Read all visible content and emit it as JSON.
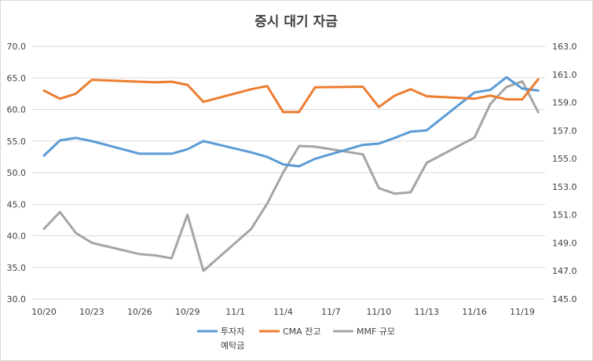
{
  "chart_data": {
    "type": "line",
    "title": "증시 대기 자금",
    "x_tick_labels": [
      "10/20",
      "10/23",
      "10/26",
      "10/29",
      "11/1",
      "11/4",
      "11/7",
      "11/10",
      "11/13",
      "11/16",
      "11/19"
    ],
    "x": [
      "10/20",
      "10/21",
      "10/22",
      "10/23",
      "10/26",
      "10/27",
      "10/28",
      "10/29",
      "10/30",
      "11/2",
      "11/3",
      "11/4",
      "11/5",
      "11/6",
      "11/9",
      "11/10",
      "11/11",
      "11/12",
      "11/13",
      "11/16",
      "11/17",
      "11/18",
      "11/19",
      "11/20"
    ],
    "left_axis": {
      "ylim": [
        30,
        70
      ],
      "ticks": [
        "30.0",
        "35.0",
        "40.0",
        "45.0",
        "50.0",
        "55.0",
        "60.0",
        "65.0",
        "70.0"
      ]
    },
    "right_axis": {
      "ylim": [
        145,
        163
      ],
      "ticks": [
        "145.0",
        "147.0",
        "149.0",
        "151.0",
        "153.0",
        "155.0",
        "157.0",
        "159.0",
        "161.0",
        "163.0"
      ]
    },
    "series": [
      {
        "name": "투자자 예탁금",
        "axis": "left",
        "color": "#5b9bd5",
        "values": [
          52.7,
          55.1,
          55.5,
          55.0,
          53.0,
          53.0,
          53.0,
          53.7,
          55.0,
          53.2,
          52.5,
          51.3,
          51.0,
          52.2,
          54.4,
          54.6,
          55.5,
          56.5,
          56.7,
          62.7,
          63.1,
          65.1,
          63.3,
          63.0
        ]
      },
      {
        "name": "CMA 잔고",
        "axis": "left",
        "color": "#ed7d31",
        "values": [
          63.0,
          61.7,
          62.5,
          64.7,
          64.4,
          64.3,
          64.4,
          63.9,
          61.2,
          63.2,
          63.7,
          59.6,
          59.6,
          63.5,
          63.6,
          60.4,
          62.2,
          63.2,
          62.1,
          61.7,
          62.2,
          61.6,
          61.6,
          64.8
        ]
      },
      {
        "name": "MMF 규모",
        "axis": "right",
        "color": "#a5a5a5",
        "values": [
          150.0,
          151.2,
          149.7,
          149.0,
          148.2,
          148.1,
          147.9,
          151.0,
          147.0,
          150.0,
          151.8,
          154.0,
          155.9,
          155.85,
          155.3,
          152.9,
          152.5,
          152.6,
          154.7,
          156.5,
          158.9,
          160.1,
          160.5,
          158.3
        ]
      }
    ]
  }
}
